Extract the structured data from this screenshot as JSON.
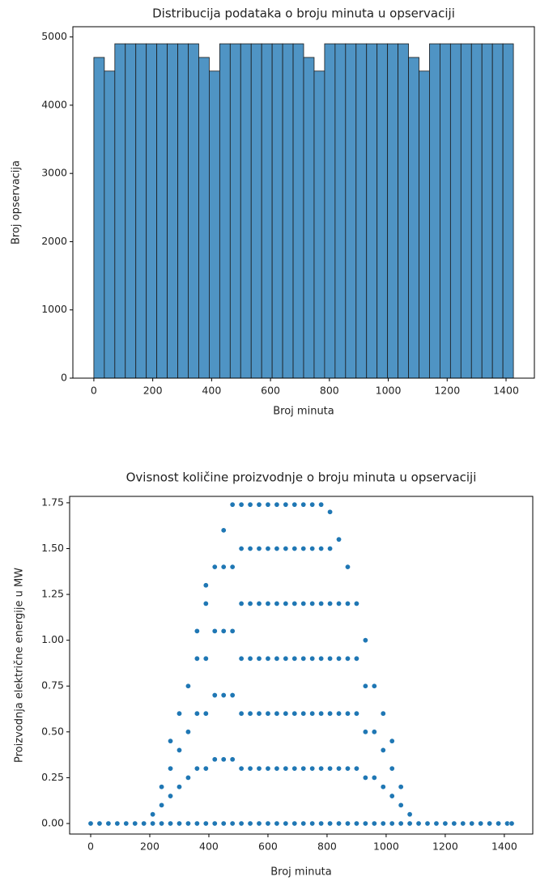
{
  "chart_data": [
    {
      "type": "histogram",
      "title": "Distribucija podataka o broju minuta u opservaciji",
      "xlabel": "Broj minuta",
      "ylabel": "Broj opservacija",
      "bins": [
        0,
        35.625,
        71.25,
        106.875,
        142.5,
        178.125,
        213.75,
        249.375,
        285,
        320.625,
        356.25,
        391.875,
        427.5,
        463.125,
        498.75,
        534.375,
        570,
        605.625,
        641.25,
        676.875,
        712.5,
        748.125,
        783.75,
        819.375,
        855,
        890.625,
        926.25,
        961.875,
        997.5,
        1033.125,
        1068.75,
        1104.375,
        1140,
        1175.625,
        1211.25,
        1246.875,
        1282.5,
        1318.125,
        1353.75,
        1389.375,
        1425
      ],
      "values": [
        4700,
        4500,
        4900,
        4900,
        4900,
        4900,
        4900,
        4900,
        4900,
        4900,
        4700,
        4500,
        4900,
        4900,
        4900,
        4900,
        4900,
        4900,
        4900,
        4900,
        4700,
        4500,
        4900,
        4900,
        4900,
        4900,
        4900,
        4900,
        4900,
        4900,
        4700,
        4500,
        4900,
        4900,
        4900,
        4900,
        4900,
        4900,
        4900,
        4900
      ],
      "color": "#4f94c4",
      "edgecolor": "#1a1a1a",
      "xlim": [
        -71.25,
        1496.25
      ],
      "ylim": [
        0,
        5150
      ],
      "xticks": [
        0,
        200,
        400,
        600,
        800,
        1000,
        1200,
        1400
      ],
      "yticks": [
        0,
        1000,
        2000,
        3000,
        4000,
        5000
      ]
    },
    {
      "type": "scatter",
      "title": "Ovisnost količine proizvodnje o broju minuta u opservaciji",
      "xlabel": "Broj minuta",
      "ylabel": "Proizvodnja električne energije u MW",
      "x": [
        0,
        30,
        60,
        90,
        120,
        150,
        180,
        210,
        210,
        240,
        240,
        240,
        270,
        270,
        270,
        270,
        300,
        300,
        300,
        300,
        330,
        330,
        330,
        330,
        360,
        360,
        360,
        360,
        360,
        390,
        390,
        390,
        390,
        390,
        390,
        420,
        420,
        420,
        420,
        420,
        450,
        450,
        450,
        450,
        450,
        450,
        480,
        480,
        480,
        480,
        480,
        480,
        510,
        510,
        510,
        510,
        510,
        510,
        510,
        540,
        540,
        540,
        540,
        540,
        540,
        540,
        570,
        570,
        570,
        570,
        570,
        570,
        570,
        600,
        600,
        600,
        600,
        600,
        600,
        600,
        630,
        630,
        630,
        630,
        630,
        630,
        630,
        660,
        660,
        660,
        660,
        660,
        660,
        660,
        690,
        690,
        690,
        690,
        690,
        690,
        690,
        720,
        720,
        720,
        720,
        720,
        720,
        720,
        750,
        750,
        750,
        750,
        750,
        750,
        750,
        780,
        780,
        780,
        780,
        780,
        780,
        780,
        810,
        810,
        810,
        810,
        810,
        810,
        810,
        840,
        840,
        840,
        840,
        840,
        840,
        870,
        870,
        870,
        870,
        870,
        870,
        900,
        900,
        900,
        900,
        900,
        930,
        930,
        930,
        930,
        930,
        960,
        960,
        960,
        960,
        990,
        990,
        990,
        990,
        1020,
        1020,
        1020,
        1020,
        1050,
        1050,
        1050,
        1080,
        1080,
        1110,
        1140,
        1170,
        1200,
        1230,
        1260,
        1290,
        1320,
        1350,
        1380,
        1410,
        1425
      ],
      "values": [
        0,
        0,
        0,
        0,
        0,
        0,
        0,
        0,
        0.05,
        0,
        0.1,
        0.2,
        0,
        0.15,
        0.3,
        0.45,
        0,
        0.2,
        0.4,
        0.6,
        0,
        0.25,
        0.5,
        0.75,
        0,
        0.3,
        0.6,
        0.9,
        1.05,
        0,
        0.3,
        0.6,
        0.9,
        1.2,
        1.3,
        0,
        0.35,
        0.7,
        1.05,
        1.4,
        0,
        0.35,
        0.7,
        1.05,
        1.4,
        1.6,
        0,
        0.35,
        0.7,
        1.05,
        1.4,
        1.74,
        0,
        0.3,
        0.6,
        0.9,
        1.2,
        1.5,
        1.74,
        0,
        0.3,
        0.6,
        0.9,
        1.2,
        1.5,
        1.74,
        0,
        0.3,
        0.6,
        0.9,
        1.2,
        1.5,
        1.74,
        0,
        0.3,
        0.6,
        0.9,
        1.2,
        1.5,
        1.74,
        0,
        0.3,
        0.6,
        0.9,
        1.2,
        1.5,
        1.74,
        0,
        0.3,
        0.6,
        0.9,
        1.2,
        1.5,
        1.74,
        0,
        0.3,
        0.6,
        0.9,
        1.2,
        1.5,
        1.74,
        0,
        0.3,
        0.6,
        0.9,
        1.2,
        1.5,
        1.74,
        0,
        0.3,
        0.6,
        0.9,
        1.2,
        1.5,
        1.74,
        0,
        0.3,
        0.6,
        0.9,
        1.2,
        1.5,
        1.74,
        0,
        0.3,
        0.6,
        0.9,
        1.2,
        1.5,
        1.7,
        0,
        0.3,
        0.6,
        0.9,
        1.2,
        1.55,
        0,
        0.3,
        0.6,
        0.9,
        1.2,
        1.4,
        0,
        0.3,
        0.6,
        0.9,
        1.2,
        0,
        0.25,
        0.5,
        0.75,
        1.0,
        0,
        0.25,
        0.5,
        0.75,
        0,
        0.2,
        0.4,
        0.6,
        0,
        0.15,
        0.3,
        0.45,
        0,
        0.1,
        0.2,
        0,
        0.05,
        0,
        0,
        0,
        0,
        0,
        0,
        0,
        0,
        0,
        0,
        0,
        0
      ],
      "color": "#1f77b4",
      "xlim": [
        -71.25,
        1496.25
      ],
      "ylim": [
        -0.0575,
        1.785
      ],
      "xticks": [
        0,
        200,
        400,
        600,
        800,
        1000,
        1200,
        1400
      ],
      "yticks": [
        {
          "value": 0,
          "label": "0.00"
        },
        0.25,
        {
          "value": 0.5,
          "label": "0.50"
        },
        0.75,
        {
          "value": 1,
          "label": "1.00"
        },
        1.25,
        {
          "value": 1.5,
          "label": "1.50"
        },
        1.75
      ]
    }
  ]
}
